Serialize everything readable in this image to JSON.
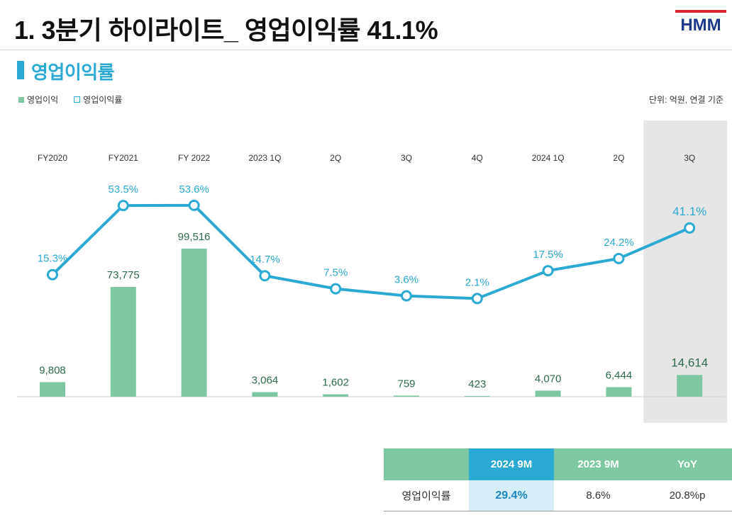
{
  "page": {
    "title": "1. 3분기 하이라이트_ 영업이익률 41.1%",
    "section_title": "영업이익률",
    "logo_text": "HMM"
  },
  "legend": {
    "bar": "영업이익",
    "line": "영업이익률"
  },
  "unit_note": "단위: 억원, 연결 기준",
  "chart_data": {
    "type": "bar+line",
    "categories": [
      "FY2020",
      "FY2021",
      "FY 2022",
      "2023 1Q",
      "2Q",
      "3Q",
      "4Q",
      "2024 1Q",
      "2Q",
      "3Q"
    ],
    "series": [
      {
        "name": "영업이익",
        "type": "bar",
        "values": [
          9808,
          73775,
          99516,
          3064,
          1602,
          759,
          423,
          4070,
          6444,
          14614
        ],
        "labels": [
          "9,808",
          "73,775",
          "99,516",
          "3,064",
          "1,602",
          "759",
          "423",
          "4,070",
          "6,444",
          "14,614"
        ]
      },
      {
        "name": "영업이익률",
        "type": "line",
        "unit": "%",
        "values": [
          15.3,
          53.5,
          53.6,
          14.7,
          7.5,
          3.6,
          2.1,
          17.5,
          24.2,
          41.1
        ],
        "labels": [
          "15.3%",
          "53.5%",
          "53.6%",
          "14.7%",
          "7.5%",
          "3.6%",
          "2.1%",
          "17.5%",
          "24.2%",
          "41.1%"
        ]
      }
    ],
    "highlight_category": "3Q",
    "colors": {
      "bar": "#7dc8a0",
      "line": "#2aa9d2",
      "bar_label": "#2e6b4a",
      "highlight_bg": "#e6e6e6"
    }
  },
  "summary_table": {
    "headers": [
      "",
      "2024 9M",
      "2023 9M",
      "YoY"
    ],
    "rows": [
      {
        "label": "영업이익률",
        "cells": [
          "29.4%",
          "8.6%",
          "20.8%p"
        ]
      }
    ]
  }
}
